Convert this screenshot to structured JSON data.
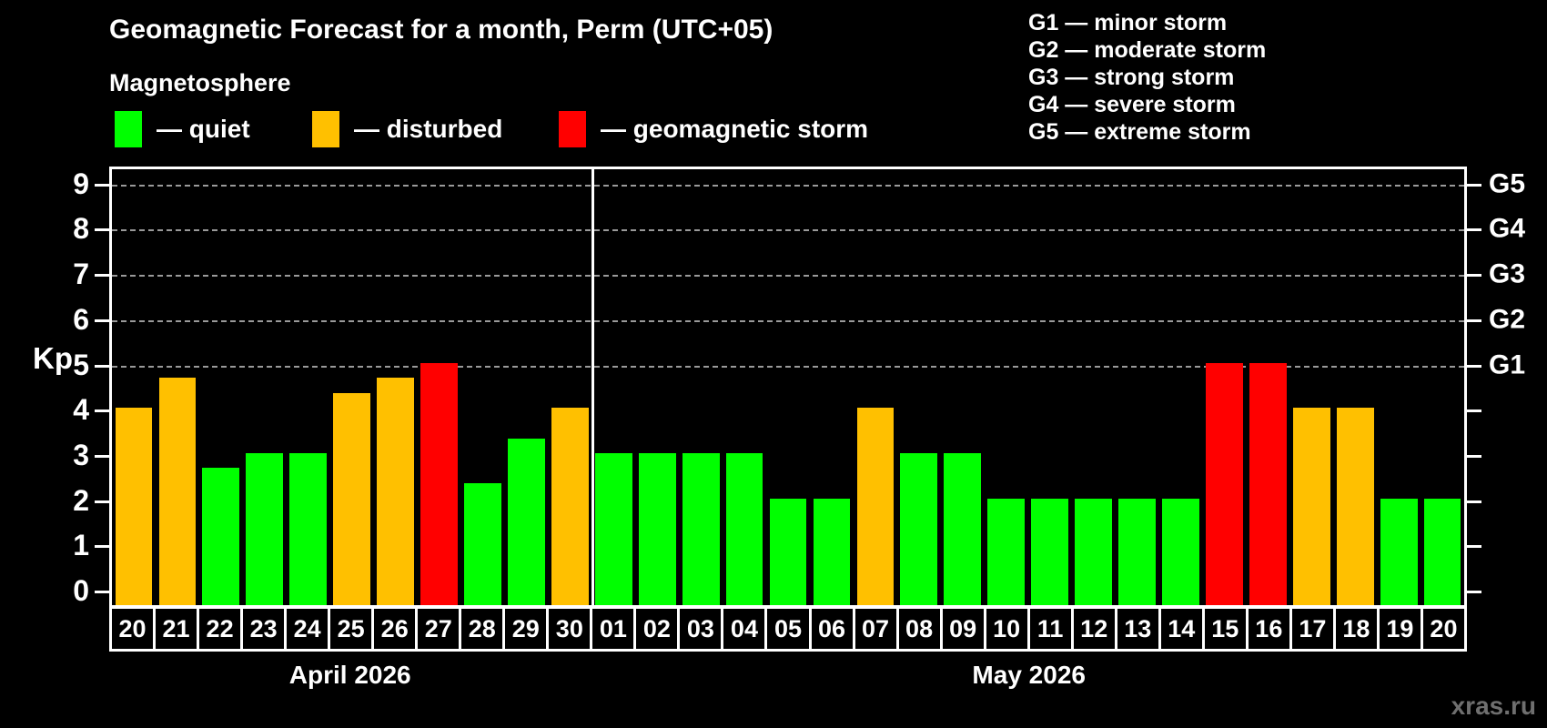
{
  "title": "Geomagnetic Forecast for a month, Perm (UTC+05)",
  "subtitle": "Magnetosphere",
  "legend": {
    "items": [
      {
        "status": "quiet",
        "label": "— quiet",
        "color": "#00ff00"
      },
      {
        "status": "disturbed",
        "label": "— disturbed",
        "color": "#ffc000"
      },
      {
        "status": "storm",
        "label": "— geomagnetic storm",
        "color": "#ff0000"
      }
    ]
  },
  "storm_scale_legend": [
    "G1 — minor storm",
    "G2 — moderate storm",
    "G3 — strong storm",
    "G4 — severe storm",
    "G5 — extreme storm"
  ],
  "y_axis": {
    "label": "Kp",
    "ticks": [
      0,
      1,
      2,
      3,
      4,
      5,
      6,
      7,
      8,
      9
    ]
  },
  "right_axis": {
    "labels": [
      {
        "text": "G1",
        "kp": 5
      },
      {
        "text": "G2",
        "kp": 6
      },
      {
        "text": "G3",
        "kp": 7
      },
      {
        "text": "G4",
        "kp": 8
      },
      {
        "text": "G5",
        "kp": 9
      }
    ]
  },
  "months": [
    {
      "label": "April 2026"
    },
    {
      "label": "May 2026"
    }
  ],
  "watermark": "xras.ru",
  "chart_data": {
    "type": "bar",
    "title": "Geomagnetic Forecast for a month, Perm (UTC+05)",
    "xlabel": "",
    "ylabel": "Kp",
    "ylim": [
      0,
      9
    ],
    "grid": "dashed horizontal at Kp 5-9 (G1-G5 storm levels)",
    "legend_position": "top",
    "series": [
      {
        "name": "April 2026",
        "points": [
          {
            "day": "20",
            "kp": 4.0,
            "status": "disturbed"
          },
          {
            "day": "21",
            "kp": 4.67,
            "status": "disturbed"
          },
          {
            "day": "22",
            "kp": 2.67,
            "status": "quiet"
          },
          {
            "day": "23",
            "kp": 3.0,
            "status": "quiet"
          },
          {
            "day": "24",
            "kp": 3.0,
            "status": "quiet"
          },
          {
            "day": "25",
            "kp": 4.33,
            "status": "disturbed"
          },
          {
            "day": "26",
            "kp": 4.67,
            "status": "disturbed"
          },
          {
            "day": "27",
            "kp": 5.0,
            "status": "storm"
          },
          {
            "day": "28",
            "kp": 2.33,
            "status": "quiet"
          },
          {
            "day": "29",
            "kp": 3.33,
            "status": "quiet"
          },
          {
            "day": "30",
            "kp": 4.0,
            "status": "disturbed"
          }
        ]
      },
      {
        "name": "May 2026",
        "points": [
          {
            "day": "01",
            "kp": 3.0,
            "status": "quiet"
          },
          {
            "day": "02",
            "kp": 3.0,
            "status": "quiet"
          },
          {
            "day": "03",
            "kp": 3.0,
            "status": "quiet"
          },
          {
            "day": "04",
            "kp": 3.0,
            "status": "quiet"
          },
          {
            "day": "05",
            "kp": 2.0,
            "status": "quiet"
          },
          {
            "day": "06",
            "kp": 2.0,
            "status": "quiet"
          },
          {
            "day": "07",
            "kp": 4.0,
            "status": "disturbed"
          },
          {
            "day": "08",
            "kp": 3.0,
            "status": "quiet"
          },
          {
            "day": "09",
            "kp": 3.0,
            "status": "quiet"
          },
          {
            "day": "10",
            "kp": 2.0,
            "status": "quiet"
          },
          {
            "day": "11",
            "kp": 2.0,
            "status": "quiet"
          },
          {
            "day": "12",
            "kp": 2.0,
            "status": "quiet"
          },
          {
            "day": "13",
            "kp": 2.0,
            "status": "quiet"
          },
          {
            "day": "14",
            "kp": 2.0,
            "status": "quiet"
          },
          {
            "day": "15",
            "kp": 5.0,
            "status": "storm"
          },
          {
            "day": "16",
            "kp": 5.0,
            "status": "storm"
          },
          {
            "day": "17",
            "kp": 4.0,
            "status": "disturbed"
          },
          {
            "day": "18",
            "kp": 4.0,
            "status": "disturbed"
          },
          {
            "day": "19",
            "kp": 2.0,
            "status": "quiet"
          },
          {
            "day": "20",
            "kp": 2.0,
            "status": "quiet"
          }
        ]
      }
    ]
  }
}
